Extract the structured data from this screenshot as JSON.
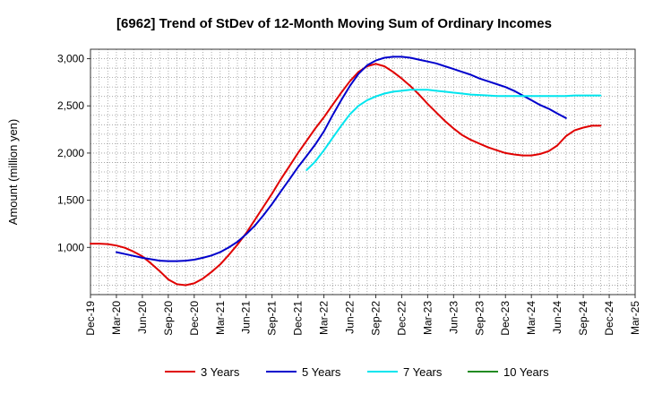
{
  "chart_data": {
    "type": "line",
    "title": "[6962]  Trend of StDev of 12-Month Moving Sum of Ordinary Incomes",
    "xlabel": "",
    "ylabel": "Amount (million yen)",
    "ylim": [
      500,
      3100
    ],
    "yticks": [
      1000,
      1500,
      2000,
      2500,
      3000
    ],
    "ytick_labels": [
      "1,000",
      "1,500",
      "2,000",
      "2,500",
      "3,000"
    ],
    "x_range": [
      0,
      63
    ],
    "categories": [
      "Dec-19",
      "Mar-20",
      "Jun-20",
      "Sep-20",
      "Dec-20",
      "Mar-21",
      "Jun-21",
      "Sep-21",
      "Dec-21",
      "Mar-22",
      "Jun-22",
      "Sep-22",
      "Dec-22",
      "Mar-23",
      "Jun-23",
      "Sep-23",
      "Dec-23",
      "Mar-24",
      "Jun-24",
      "Sep-24",
      "Dec-24",
      "Mar-25"
    ],
    "grid": true,
    "legend_position": "bottom",
    "series": [
      {
        "name": "3 Years",
        "color": "#e00000",
        "x": [
          0,
          1,
          2,
          3,
          4,
          5,
          6,
          7,
          8,
          9,
          10,
          11,
          12,
          13,
          14,
          15,
          16,
          17,
          18,
          19,
          20,
          21,
          22,
          23,
          24,
          25,
          26,
          27,
          28,
          29,
          30,
          31,
          32,
          33,
          34,
          35,
          36,
          37,
          38,
          39,
          40,
          41,
          42,
          43,
          44,
          45,
          46,
          47,
          48,
          49,
          50,
          51,
          52,
          53,
          54,
          55,
          56,
          57,
          58,
          59,
          60
        ],
        "values": [
          1040,
          1040,
          1035,
          1020,
          995,
          955,
          905,
          830,
          750,
          660,
          610,
          600,
          620,
          670,
          740,
          820,
          920,
          1030,
          1150,
          1290,
          1430,
          1570,
          1720,
          1860,
          2000,
          2130,
          2260,
          2380,
          2510,
          2640,
          2760,
          2860,
          2920,
          2945,
          2920,
          2860,
          2790,
          2710,
          2620,
          2520,
          2430,
          2340,
          2260,
          2190,
          2140,
          2100,
          2060,
          2030,
          2000,
          1985,
          1975,
          1975,
          1990,
          2020,
          2080,
          2180,
          2240,
          2270,
          2290,
          2290,
          null
        ],
        "labels": []
      },
      {
        "name": "5 Years",
        "color": "#0000cc",
        "x": [
          0,
          1,
          2,
          3,
          4,
          5,
          6,
          7,
          8,
          9,
          10,
          11,
          12,
          13,
          14,
          15,
          16,
          17,
          18,
          19,
          20,
          21,
          22,
          23,
          24,
          25,
          26,
          27,
          28,
          29,
          30,
          31,
          32,
          33,
          34,
          35,
          36,
          37,
          38,
          39,
          40,
          41,
          42,
          43,
          44,
          45,
          46,
          47,
          48,
          49,
          50,
          51,
          52,
          53,
          54,
          55,
          56,
          57,
          58,
          59,
          60
        ],
        "values": [
          null,
          null,
          null,
          950,
          930,
          910,
          890,
          875,
          860,
          855,
          855,
          860,
          870,
          890,
          915,
          950,
          1000,
          1060,
          1140,
          1230,
          1340,
          1460,
          1590,
          1720,
          1850,
          1970,
          2090,
          2230,
          2400,
          2560,
          2710,
          2840,
          2930,
          2980,
          3010,
          3020,
          3020,
          3010,
          2990,
          2970,
          2950,
          2920,
          2890,
          2860,
          2830,
          2790,
          2760,
          2730,
          2700,
          2660,
          2610,
          2560,
          2510,
          2470,
          2420,
          2370,
          null,
          null,
          null,
          null,
          null
        ],
        "labels": []
      },
      {
        "name": "7 Years",
        "color": "#00e5ee",
        "x": [
          0,
          1,
          2,
          3,
          4,
          5,
          6,
          7,
          8,
          9,
          10,
          11,
          12,
          13,
          14,
          15,
          16,
          17,
          18,
          19,
          20,
          21,
          22,
          23,
          24,
          25,
          26,
          27,
          28,
          29,
          30,
          31,
          32,
          33,
          34,
          35,
          36,
          37,
          38,
          39,
          40,
          41,
          42,
          43,
          44,
          45,
          46,
          47,
          48,
          49,
          50,
          51,
          52,
          53,
          54,
          55,
          56,
          57,
          58,
          59,
          60
        ],
        "values": [
          null,
          null,
          null,
          null,
          null,
          null,
          null,
          null,
          null,
          null,
          null,
          null,
          null,
          null,
          null,
          null,
          null,
          null,
          null,
          null,
          null,
          null,
          null,
          null,
          null,
          1820,
          1910,
          2030,
          2160,
          2290,
          2410,
          2500,
          2560,
          2600,
          2630,
          2650,
          2660,
          2670,
          2670,
          2670,
          2660,
          2650,
          2640,
          2630,
          2620,
          2615,
          2610,
          2605,
          2605,
          2605,
          2605,
          2605,
          2605,
          2605,
          2605,
          2605,
          2610,
          2610,
          2610,
          2610,
          null
        ],
        "labels": []
      },
      {
        "name": "10 Years",
        "color": "#228b22",
        "x": [],
        "values": [],
        "labels": []
      }
    ]
  }
}
